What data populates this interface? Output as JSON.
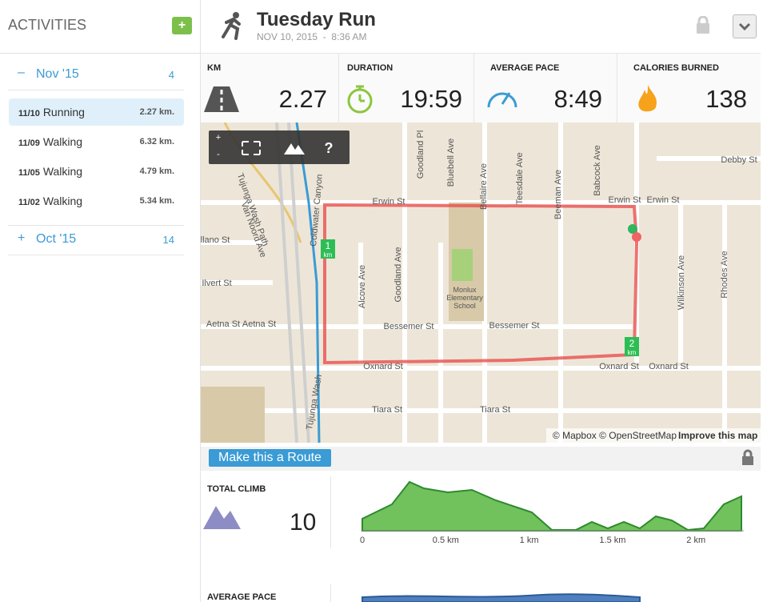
{
  "sidebar": {
    "title": "ACTIVITIES",
    "add_button": "+",
    "months": [
      {
        "toggle": "–",
        "label": "Nov '15",
        "count": 4,
        "activities": [
          {
            "date": "11/10",
            "type": "Running",
            "distance": "2.27 km."
          },
          {
            "date": "11/09",
            "type": "Walking",
            "distance": "6.32 km."
          },
          {
            "date": "11/05",
            "type": "Walking",
            "distance": "4.79 km."
          },
          {
            "date": "11/02",
            "type": "Walking",
            "distance": "5.34 km."
          }
        ]
      },
      {
        "toggle": "+",
        "label": "Oct '15",
        "count": 14
      }
    ]
  },
  "header": {
    "title": "Tuesday Run",
    "date": "NOV 10, 2015",
    "separator": "-",
    "time": "8:36 AM"
  },
  "stats": [
    {
      "label": "KM",
      "value": 2.27
    },
    {
      "label": "DURATION",
      "value": "19:59"
    },
    {
      "label": "AVERAGE PACE",
      "value": "8:49"
    },
    {
      "label": "CALORIES BURNED",
      "value": 138
    }
  ],
  "map": {
    "controls": [
      "+",
      "-",
      "?"
    ],
    "labels": [
      "Erwin St",
      "Erwin St",
      "Erwin St",
      "Oxnard St",
      "Oxnard St",
      "Oxnard St",
      "Bessemer St",
      "Bessemer St",
      "Aetna St",
      "Aetna St",
      "Tiara St",
      "Tiara St",
      "Ilvert St",
      "llano St",
      "Debby St",
      "Goodland Ave",
      "Goodland Pl",
      "Bluebell Ave",
      "Bellaire Ave",
      "Teesdale Ave",
      "Beeman Ave",
      "Babcock Ave",
      "Alcove Ave",
      "Van Noord Ave",
      "Wilkinson Ave",
      "Rhodes Ave",
      "Monlux",
      "Elementary",
      "School",
      "Tujunga Wash Path",
      "Tujunga Wash",
      "Coldwater Canyon"
    ],
    "markers": [
      {
        "number": 1,
        "unit": "km"
      },
      {
        "number": 2,
        "unit": "km"
      }
    ],
    "attribution": "© Mapbox © OpenStreetMap",
    "improve": "Improve this map"
  },
  "route_button": "Make this a Route",
  "climb": {
    "label": "TOTAL CLIMB",
    "value": 10,
    "xticks": [
      "0",
      "0.5 km",
      "1 km",
      "1.5 km",
      "2 km"
    ]
  },
  "pace": {
    "label": "AVERAGE PACE"
  }
}
